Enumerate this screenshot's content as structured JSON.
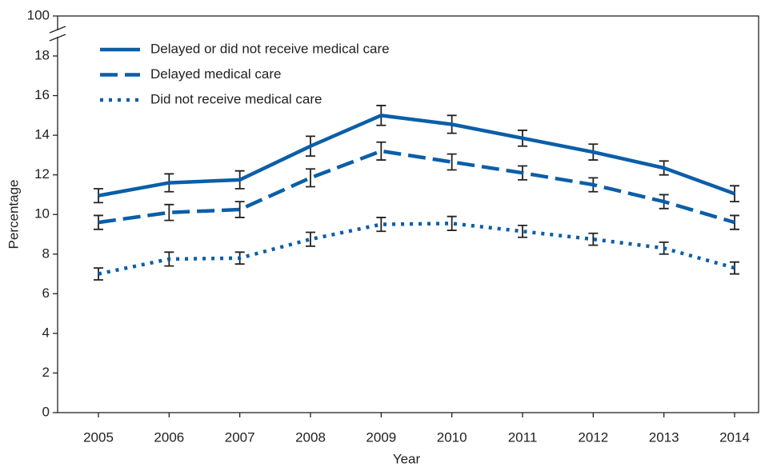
{
  "chart_data": {
    "type": "line",
    "x_label": "Year",
    "y_label": "Percentage",
    "categories": [
      "2005",
      "2006",
      "2007",
      "2008",
      "2009",
      "2010",
      "2011",
      "2012",
      "2013",
      "2014"
    ],
    "series": [
      {
        "name": "Delayed or did not receive medical care",
        "color": "#0b5ea8",
        "dash": "solid",
        "values": [
          10.95,
          11.6,
          11.75,
          13.45,
          15.0,
          14.55,
          13.85,
          13.15,
          12.35,
          11.05
        ],
        "errors": [
          0.35,
          0.45,
          0.45,
          0.5,
          0.5,
          0.45,
          0.4,
          0.4,
          0.35,
          0.4
        ]
      },
      {
        "name": "Delayed medical care",
        "color": "#0b5ea8",
        "dash": "dashed",
        "values": [
          9.6,
          10.1,
          10.25,
          11.85,
          13.2,
          12.65,
          12.1,
          11.5,
          10.65,
          9.6
        ],
        "errors": [
          0.35,
          0.4,
          0.4,
          0.45,
          0.45,
          0.4,
          0.35,
          0.35,
          0.35,
          0.35
        ]
      },
      {
        "name": "Did not receive medical care",
        "color": "#0b5ea8",
        "dash": "dotted",
        "values": [
          7.0,
          7.75,
          7.8,
          8.75,
          9.5,
          9.55,
          9.15,
          8.75,
          8.3,
          7.3
        ],
        "errors": [
          0.3,
          0.35,
          0.3,
          0.35,
          0.35,
          0.35,
          0.3,
          0.3,
          0.3,
          0.3
        ]
      }
    ],
    "ylim": [
      0,
      100
    ],
    "yticks": [
      0,
      2,
      4,
      6,
      8,
      10,
      12,
      14,
      16,
      18,
      100
    ],
    "axis_break": true,
    "legend": "upper left",
    "grid": false
  }
}
